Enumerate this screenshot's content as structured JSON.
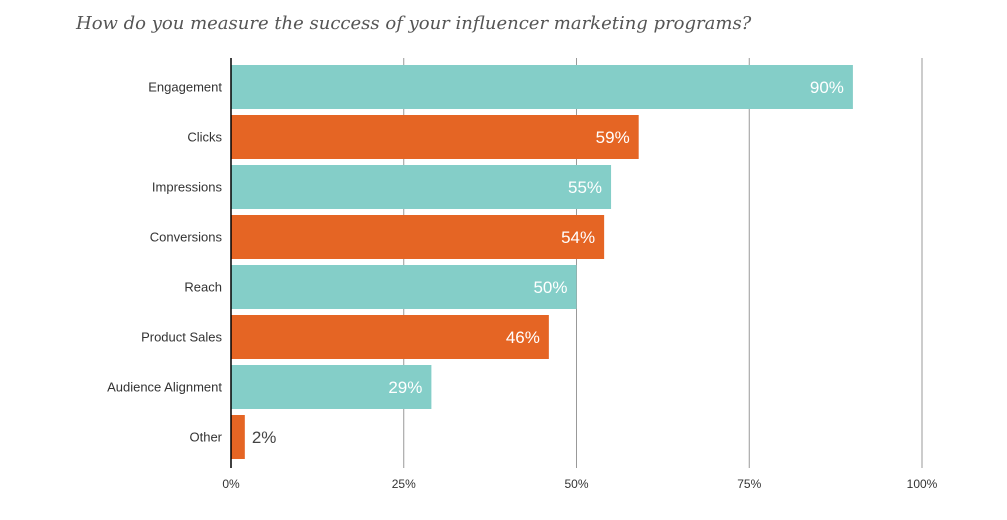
{
  "chart_data": {
    "type": "bar",
    "orientation": "horizontal",
    "title": "How do you measure the success of your influencer marketing programs?",
    "categories": [
      "Engagement",
      "Clicks",
      "Impressions",
      "Conversions",
      "Reach",
      "Product Sales",
      "Audience Alignment",
      "Other"
    ],
    "values": [
      90,
      59,
      55,
      54,
      50,
      46,
      29,
      2
    ],
    "value_labels": [
      "90%",
      "59%",
      "55%",
      "54%",
      "50%",
      "46%",
      "29%",
      "2%"
    ],
    "xlim": [
      0,
      100
    ],
    "xticks": [
      0,
      25,
      50,
      75,
      100
    ],
    "xtick_labels": [
      "0%",
      "25%",
      "50%",
      "75%",
      "100%"
    ],
    "grid": "vertical",
    "colors": [
      "#84cec8",
      "#e56524"
    ],
    "label_color_outside": "#444444"
  }
}
